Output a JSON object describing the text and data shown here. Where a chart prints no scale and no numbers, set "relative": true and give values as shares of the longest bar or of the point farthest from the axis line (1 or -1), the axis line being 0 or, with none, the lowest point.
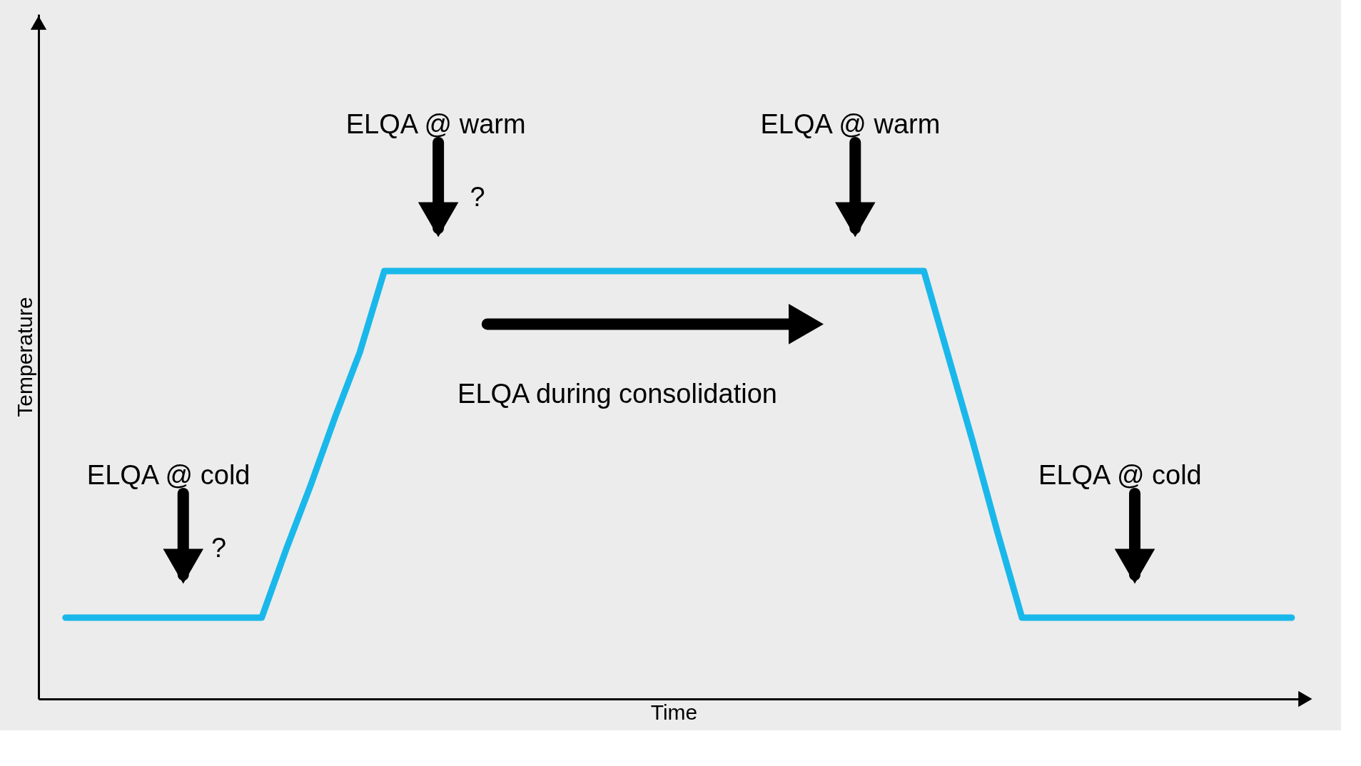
{
  "chart_data": {
    "type": "line",
    "relative": true,
    "xlabel": "Time",
    "ylabel": "Temperature",
    "categories": [
      null,
      null,
      null,
      null,
      null,
      null,
      null,
      null,
      null,
      null,
      null,
      null,
      null,
      null,
      null,
      null,
      null,
      null,
      null,
      null,
      null,
      null,
      null,
      null,
      null,
      null,
      null,
      null,
      null,
      null,
      null,
      null,
      null,
      null,
      null,
      null,
      null,
      null,
      null,
      null,
      null,
      null,
      null,
      null,
      null,
      null,
      null,
      null,
      null,
      null,
      null
    ],
    "series": [
      {
        "color": "#1ab8ea",
        "values": [
          0.19,
          0.19,
          0.19,
          0.19,
          0.19,
          0.19,
          0.19,
          0.19,
          0.19,
          0.35,
          0.5,
          0.66,
          0.81,
          1,
          1,
          1,
          1,
          1,
          1,
          1,
          1,
          1,
          1,
          1,
          1,
          1,
          1,
          1,
          1,
          1,
          1,
          1,
          1,
          1,
          1,
          1,
          0.8,
          0.6,
          0.39,
          0.19,
          0.19,
          0.19,
          0.19,
          0.19,
          0.19,
          0.19,
          0.19,
          0.19,
          0.19,
          0.19,
          0.19
        ]
      }
    ],
    "annotations": [
      "ELQA @ warm",
      "ELQA @ warm",
      "ELQA @ cold",
      "ELQA @ cold",
      "ELQA during consolidation",
      "?",
      "?"
    ],
    "grid": false
  }
}
